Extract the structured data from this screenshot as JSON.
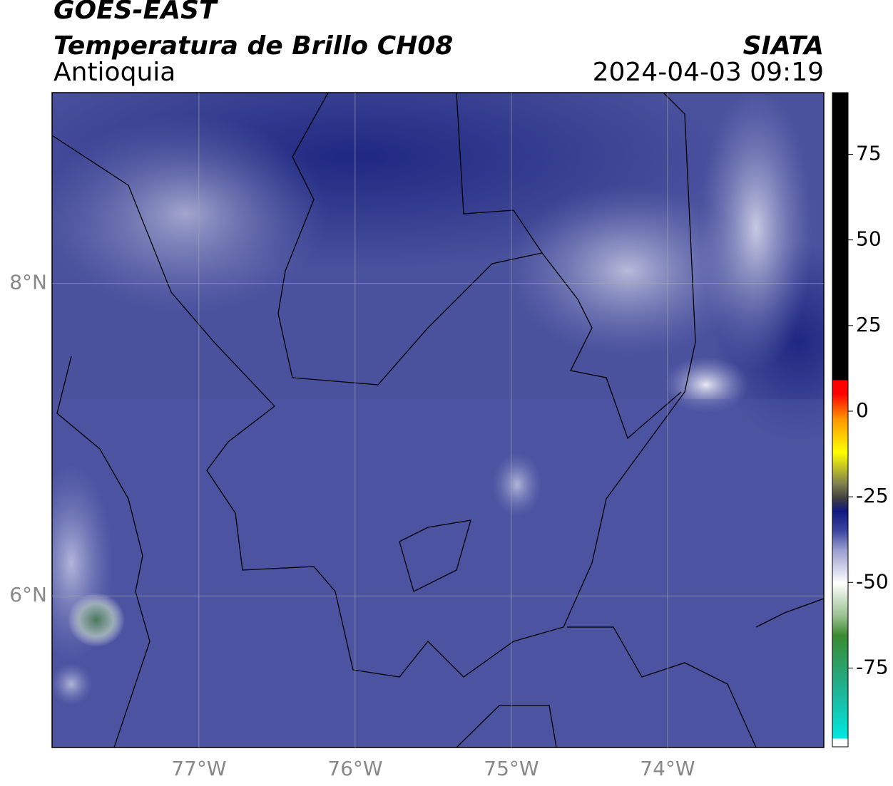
{
  "chart_data": {
    "type": "map",
    "title": "GOES-EAST",
    "subtitle": "Temperatura de Brillo CH08",
    "region": "Antioquia",
    "source": "SIATA",
    "datetime": "2024-04-03 09:19",
    "xlim": [
      -77.94,
      -73.0
    ],
    "ylim": [
      5.03,
      9.22
    ],
    "xticks": [
      {
        "value": -77,
        "label": "77°W"
      },
      {
        "value": -76,
        "label": "76°W"
      },
      {
        "value": -75,
        "label": "75°W"
      },
      {
        "value": -74,
        "label": "74°W"
      }
    ],
    "yticks": [
      {
        "value": 6,
        "label": "6°N"
      },
      {
        "value": 8,
        "label": "8°N"
      }
    ],
    "grid": true,
    "colorbar": {
      "lim": [
        -98,
        93
      ],
      "ticks": [
        75,
        50,
        25,
        0,
        -25,
        -50,
        -75
      ]
    }
  }
}
